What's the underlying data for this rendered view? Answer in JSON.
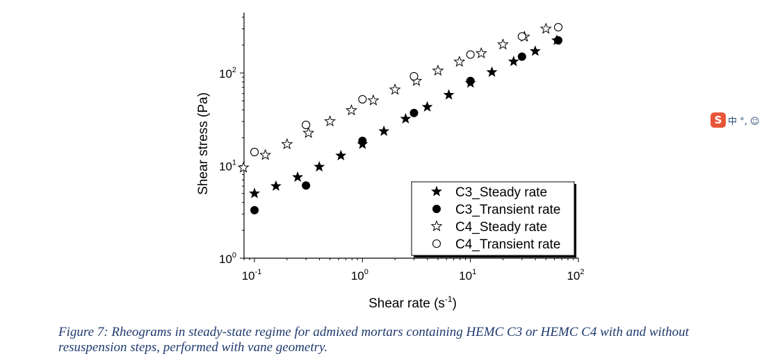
{
  "chart_data": {
    "type": "scatter",
    "xlabel_main": "Shear rate (s",
    "xlabel_sup": "-1",
    "xlabel_end": ")",
    "ylabel": "Shear stress (Pa)",
    "x_scale": "log",
    "y_scale": "log",
    "xlim": [
      0.08,
      100
    ],
    "ylim": [
      1,
      450
    ],
    "x_ticks": [
      {
        "base": "10",
        "exp": "-1",
        "value": 0.1
      },
      {
        "base": "10",
        "exp": "0",
        "value": 1
      },
      {
        "base": "10",
        "exp": "1",
        "value": 10
      },
      {
        "base": "10",
        "exp": "2",
        "value": 100
      }
    ],
    "y_ticks": [
      {
        "base": "10",
        "exp": "0",
        "value": 1
      },
      {
        "base": "10",
        "exp": "1",
        "value": 10
      },
      {
        "base": "10",
        "exp": "2",
        "value": 100
      }
    ],
    "grid": false,
    "legend_position": "bottom-right",
    "series": [
      {
        "name": "C3_Steady rate",
        "marker": "star-filled",
        "x": [
          0.1,
          0.158,
          0.251,
          0.398,
          0.631,
          1.0,
          1.58,
          2.51,
          3.98,
          6.31,
          10.0,
          15.8,
          25.1,
          39.8,
          63.1
        ],
        "y": [
          5.0,
          6.0,
          7.5,
          9.7,
          12.8,
          17.0,
          23.5,
          32.0,
          43.0,
          58.0,
          78.0,
          102.0,
          133.0,
          172.0,
          225.0
        ]
      },
      {
        "name": "C3_Transient rate",
        "marker": "circle-filled",
        "x": [
          0.1,
          0.3,
          1.0,
          3.0,
          10.0,
          30.0,
          65.0
        ],
        "y": [
          3.3,
          6.1,
          18.5,
          37.0,
          82.0,
          150.0,
          225.0
        ]
      },
      {
        "name": "C4_Steady rate",
        "marker": "star-open",
        "x": [
          0.079,
          0.126,
          0.2,
          0.316,
          0.5,
          0.79,
          1.26,
          2.0,
          3.16,
          5.0,
          7.9,
          12.6,
          20.0,
          31.6,
          50.0
        ],
        "y": [
          9.5,
          13.0,
          17.0,
          22.5,
          30.0,
          39.5,
          50.5,
          66.0,
          82.0,
          106.0,
          132.0,
          163.0,
          203.0,
          246.0,
          300.0
        ]
      },
      {
        "name": "C4_Transient rate",
        "marker": "circle-open",
        "x": [
          0.1,
          0.3,
          1.0,
          3.0,
          10.0,
          30.0,
          65.0
        ],
        "y": [
          14.0,
          27.5,
          52.0,
          92.0,
          158.0,
          248.0,
          312.0
        ]
      }
    ]
  },
  "caption": "Figure 7: Rheograms in steady-state regime for admixed mortars containing HEMC C3 or HEMC C4 with and without resuspension steps, performed with vane geometry.",
  "ime": {
    "logo": "S",
    "text": "中 °, ☺"
  }
}
